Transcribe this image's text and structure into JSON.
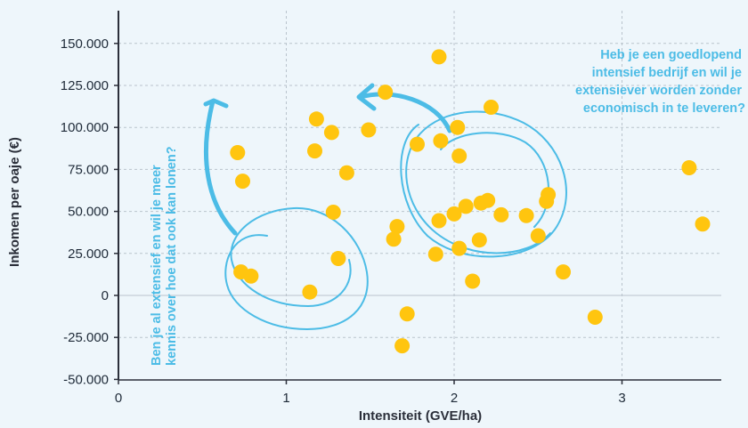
{
  "chart_data": {
    "type": "scatter",
    "title": "",
    "xlabel": "Intensiteit (GVE/ha)",
    "ylabel": "Inkomen per oaje (€)",
    "xlim": [
      0,
      3.55
    ],
    "ylim": [
      -50000,
      170000
    ],
    "x_ticks": [
      0,
      1,
      2,
      3
    ],
    "x_tick_labels": [
      "0",
      "1",
      "2",
      "3"
    ],
    "y_ticks": [
      -50000,
      -25000,
      0,
      25000,
      50000,
      75000,
      100000,
      125000,
      150000
    ],
    "y_tick_labels": [
      "-50.000",
      "-25.000",
      "0",
      "25.000",
      "50.000",
      "75.000",
      "100.000",
      "125.000",
      "150.000"
    ],
    "grid": "dashed",
    "colors": {
      "point": "#ffc50f",
      "accent": "#4cbce6",
      "axis": "#2b2f3a",
      "grid": "#b9c3cc"
    },
    "series": [
      {
        "points": [
          [
            0.71,
            85000
          ],
          [
            0.74,
            68000
          ],
          [
            0.73,
            14000
          ],
          [
            0.79,
            11500
          ],
          [
            1.14,
            2000
          ],
          [
            1.17,
            86000
          ],
          [
            1.18,
            105000
          ],
          [
            1.27,
            97000
          ],
          [
            1.28,
            49500
          ],
          [
            1.31,
            22000
          ],
          [
            1.36,
            73000
          ],
          [
            1.49,
            98500
          ],
          [
            1.59,
            121000
          ],
          [
            1.64,
            33500
          ],
          [
            1.66,
            41000
          ],
          [
            1.69,
            -30000
          ],
          [
            1.72,
            -11000
          ],
          [
            1.78,
            90000
          ],
          [
            1.89,
            24500
          ],
          [
            1.91,
            44500
          ],
          [
            1.91,
            142000
          ],
          [
            1.92,
            92000
          ],
          [
            2.0,
            48500
          ],
          [
            2.02,
            100000
          ],
          [
            2.03,
            83000
          ],
          [
            2.03,
            28000
          ],
          [
            2.07,
            53000
          ],
          [
            2.11,
            8500
          ],
          [
            2.15,
            33000
          ],
          [
            2.16,
            55000
          ],
          [
            2.2,
            56500
          ],
          [
            2.22,
            112000
          ],
          [
            2.28,
            48000
          ],
          [
            2.43,
            47500
          ],
          [
            2.5,
            35500
          ],
          [
            2.55,
            56000
          ],
          [
            2.56,
            60000
          ],
          [
            2.65,
            14000
          ],
          [
            2.84,
            -13000
          ],
          [
            3.4,
            76000
          ],
          [
            3.48,
            42500
          ]
        ]
      }
    ],
    "annotations": {
      "left": {
        "lines": [
          "Ben je al extensief en wil je meer",
          "kennis over hoe dat ook kan lonen?"
        ]
      },
      "right": {
        "lines": [
          "Heb je een goedlopend",
          "intensief bedrijf en wil je",
          "extensiever worden zonder",
          "economisch in te leveren?"
        ]
      }
    }
  }
}
